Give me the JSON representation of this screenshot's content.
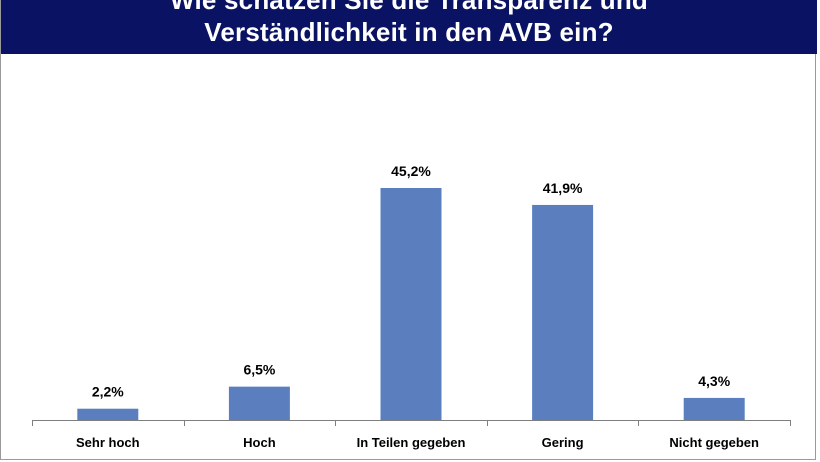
{
  "title_lines": [
    "Wie schätzen Sie die Transparenz und",
    "Verständlichkeit in den AVB ein?"
  ],
  "chart_data": {
    "type": "bar",
    "title": "Wie schätzen Sie die Transparenz und Verständlichkeit in den AVB ein?",
    "categories": [
      "Sehr hoch",
      "Hoch",
      "In Teilen gegeben",
      "Gering",
      "Nicht gegeben"
    ],
    "values": [
      2.2,
      6.5,
      45.2,
      41.9,
      4.3
    ],
    "data_labels": [
      "2,2%",
      "6,5%",
      "45,2%",
      "41,9%",
      "4,3%"
    ],
    "ylim": [
      0,
      50
    ],
    "xlabel": "",
    "ylabel": "",
    "grid": false,
    "bar_color": "#5b7fbe",
    "title_bg": "#0a1264"
  }
}
